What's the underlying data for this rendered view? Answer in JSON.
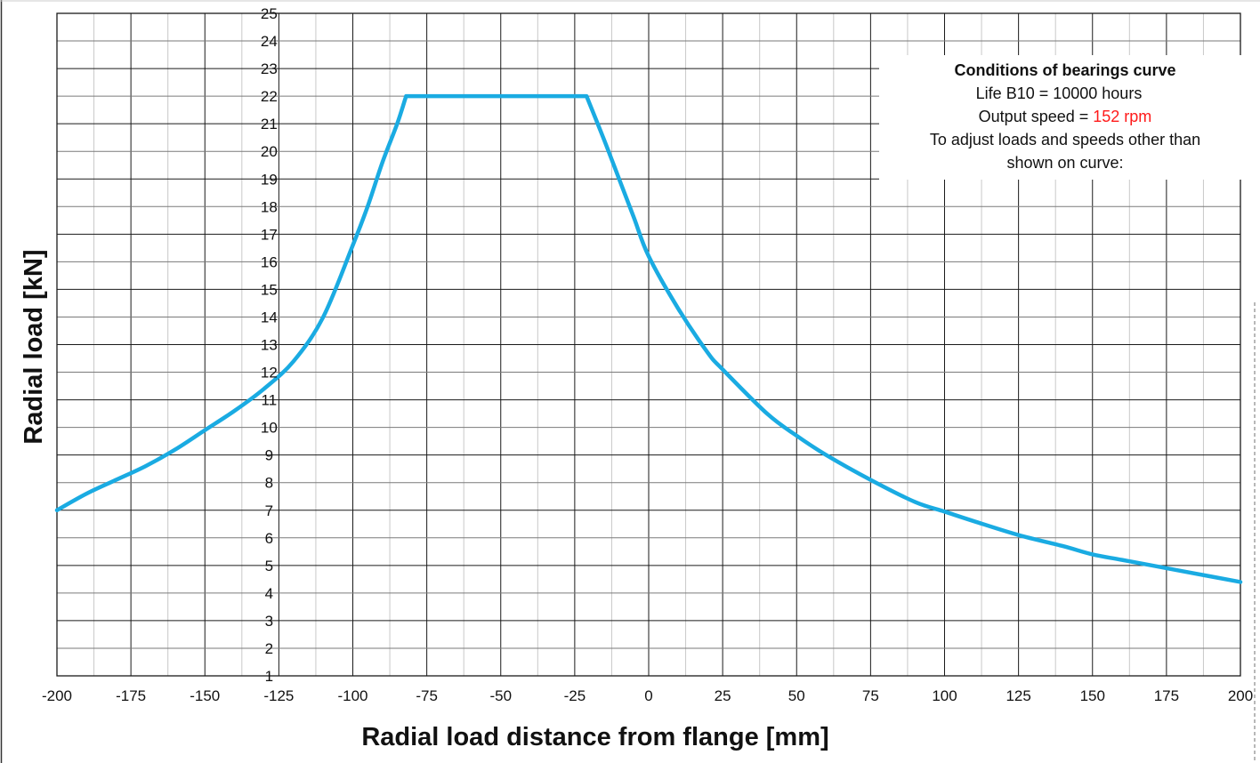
{
  "chart_data": {
    "type": "line",
    "title": "",
    "xlabel": "Radial load distance from flange [mm]",
    "ylabel": "Radial load [kN]",
    "xlim": [
      -200,
      200
    ],
    "ylim": [
      1,
      25
    ],
    "x_ticks": [
      -200,
      -175,
      -150,
      -125,
      -100,
      -75,
      -50,
      -25,
      0,
      25,
      50,
      75,
      100,
      125,
      150,
      175,
      200
    ],
    "y_ticks": [
      1,
      2,
      3,
      4,
      5,
      6,
      7,
      8,
      9,
      10,
      11,
      12,
      13,
      14,
      15,
      16,
      17,
      18,
      19,
      20,
      21,
      22,
      23,
      24,
      25
    ],
    "grid": true,
    "series": [
      {
        "color": "#1aabe2",
        "x": [
          -200,
          -190,
          -180,
          -170,
          -160,
          -150,
          -140,
          -130,
          -120,
          -110,
          -100,
          -95,
          -90,
          -85,
          -82,
          -75,
          -50,
          -25,
          -21,
          -15,
          -10,
          -5,
          0,
          10,
          20,
          25,
          40,
          50,
          60,
          75,
          90,
          100,
          110,
          125,
          140,
          150,
          160,
          175,
          190,
          200
        ],
        "y": [
          7.0,
          7.6,
          8.1,
          8.6,
          9.2,
          9.9,
          10.6,
          11.4,
          12.4,
          14.0,
          16.6,
          18.0,
          19.6,
          21.0,
          22.0,
          22.0,
          22.0,
          22.0,
          22.0,
          20.4,
          19.0,
          17.6,
          16.2,
          14.3,
          12.7,
          12.1,
          10.5,
          9.7,
          9.0,
          8.1,
          7.3,
          6.95,
          6.6,
          6.1,
          5.7,
          5.4,
          5.2,
          4.9,
          4.6,
          4.4
        ]
      }
    ],
    "annotation": {
      "title": "Conditions of bearings curve",
      "lines": [
        "Life B10 = 10000 hours",
        "To adjust loads and speeds other than",
        "shown on curve:"
      ],
      "speed_prefix": "Output speed = ",
      "speed_value": "152 rpm",
      "speed_color": "#ff1a1a",
      "placement": "top-right"
    }
  }
}
